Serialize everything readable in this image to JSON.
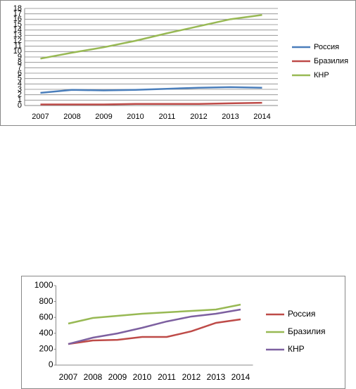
{
  "chart_data": [
    {
      "type": "line",
      "categories": [
        "2007",
        "2008",
        "2009",
        "2010",
        "2011",
        "2012",
        "2013",
        "2014"
      ],
      "series": [
        {
          "name": "Россия",
          "color": "#4a7ebb",
          "values": [
            2.35,
            2.9,
            2.8,
            2.9,
            3.1,
            3.3,
            3.4,
            3.3
          ]
        },
        {
          "name": "Бразилия",
          "color": "#be4b48",
          "values": [
            0.2,
            0.2,
            0.2,
            0.3,
            0.3,
            0.3,
            0.4,
            0.5
          ]
        },
        {
          "name": "КНР",
          "color": "#98b954",
          "values": [
            8.7,
            9.8,
            10.8,
            12,
            13.4,
            14.7,
            16,
            16.8
          ]
        }
      ],
      "ylim": [
        0,
        18
      ],
      "yticks": [
        0,
        1,
        2,
        3,
        4,
        5,
        6,
        7,
        8,
        9,
        10,
        11,
        12,
        13,
        14,
        15,
        16,
        17,
        18
      ],
      "grid": true
    },
    {
      "type": "line",
      "categories": [
        "2007",
        "2008",
        "2009",
        "2010",
        "2011",
        "2012",
        "2013",
        "2014"
      ],
      "series": [
        {
          "name": "Россия",
          "color": "#be4b48",
          "values": [
            265,
            310,
            318,
            354,
            354,
            425,
            531,
            575
          ]
        },
        {
          "name": "Бразилия",
          "color": "#98b954",
          "values": [
            522,
            593,
            619,
            646,
            664,
            681,
            699,
            761
          ]
        },
        {
          "name": "КНР",
          "color": "#7d60a0",
          "values": [
            265,
            345,
            398,
            469,
            549,
            611,
            646,
            699
          ]
        }
      ],
      "ylim": [
        0,
        1000
      ],
      "yticks": [
        0,
        200,
        400,
        600,
        800,
        1000
      ],
      "grid": false
    }
  ]
}
